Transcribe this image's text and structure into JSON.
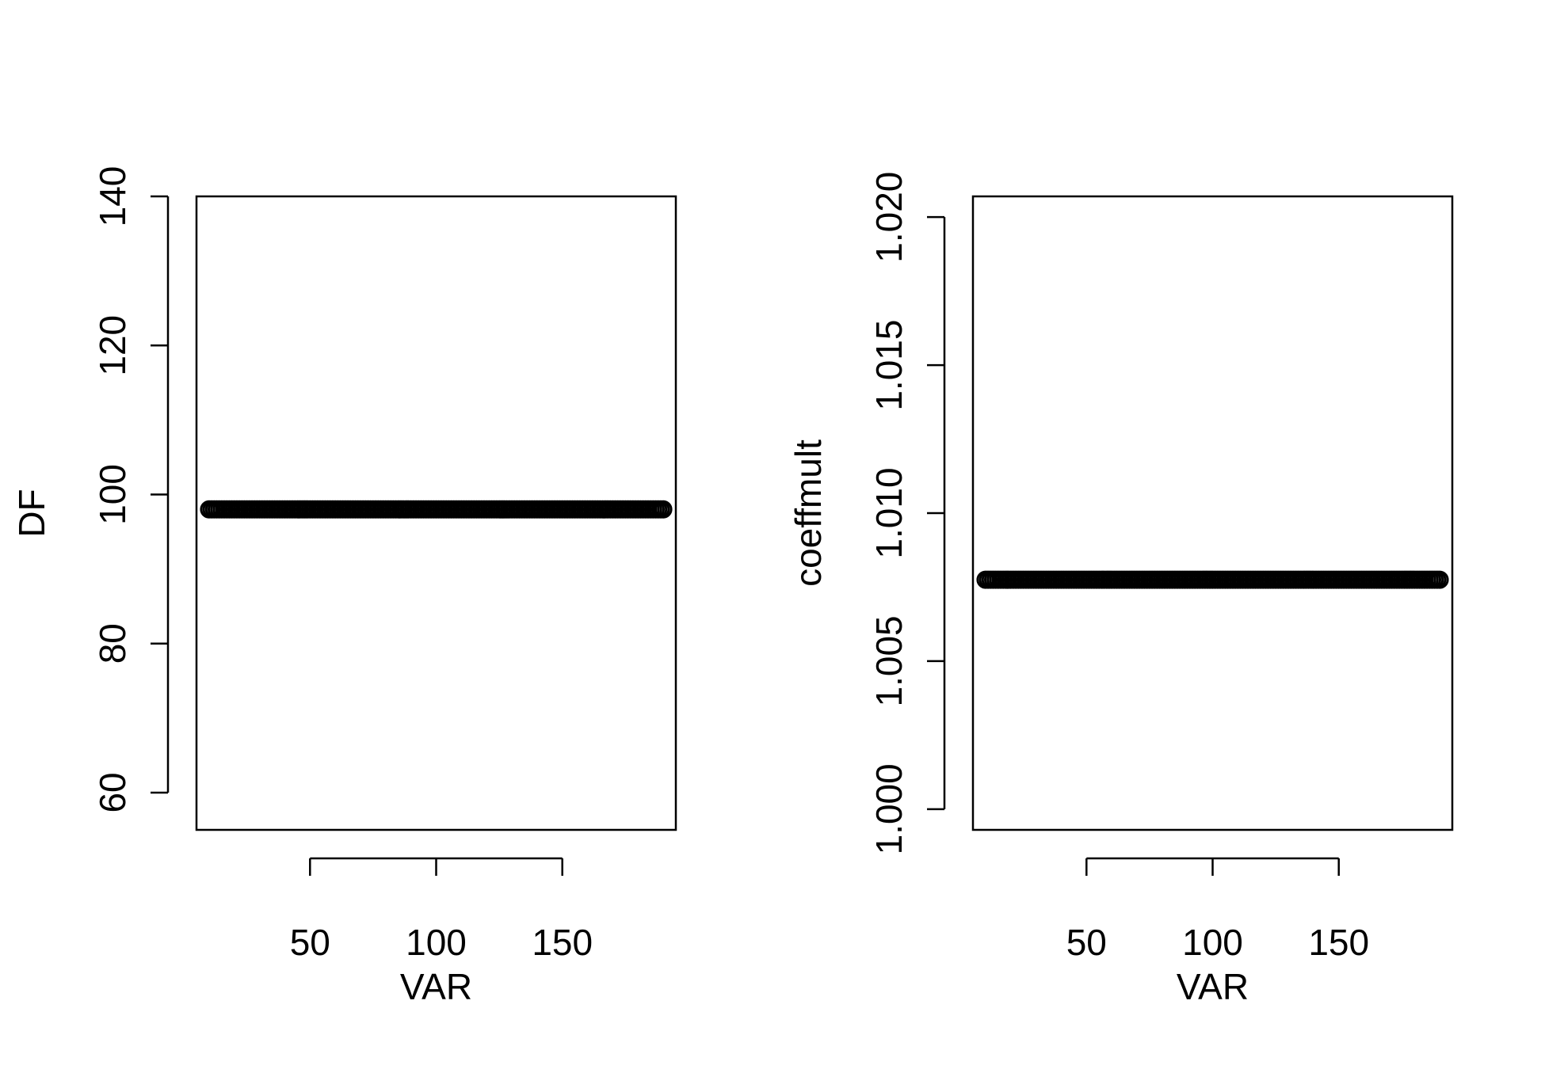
{
  "chart_data": [
    {
      "type": "scatter",
      "title": "",
      "xlabel": "VAR",
      "ylabel": "DF",
      "xlim": [
        5,
        195
      ],
      "ylim": [
        55,
        140
      ],
      "xticks": [
        50,
        100,
        150
      ],
      "xtick_labels": [
        "50",
        "100",
        "150"
      ],
      "yticks": [
        60,
        80,
        100,
        120,
        140
      ],
      "ytick_labels": [
        "60",
        "80",
        "100",
        "120",
        "140"
      ],
      "grid": false,
      "legend": "none",
      "marker": "open-circle",
      "color": "#000000",
      "series": [
        {
          "x_start": 10,
          "x_end": 190,
          "x_step": 1,
          "y_constant": 98
        }
      ]
    },
    {
      "type": "scatter",
      "title": "",
      "xlabel": "VAR",
      "ylabel": "coeffmult",
      "xlim": [
        5,
        195
      ],
      "ylim": [
        0.9993,
        1.0207
      ],
      "xticks": [
        50,
        100,
        150
      ],
      "xtick_labels": [
        "50",
        "100",
        "150"
      ],
      "yticks": [
        1.0,
        1.005,
        1.01,
        1.015,
        1.02
      ],
      "ytick_labels": [
        "1.000",
        "1.005",
        "1.010",
        "1.015",
        "1.020"
      ],
      "grid": false,
      "legend": "none",
      "marker": "open-circle",
      "color": "#000000",
      "series": [
        {
          "x_start": 10,
          "x_end": 190,
          "x_step": 1,
          "y_constant": 1.00775
        }
      ]
    }
  ]
}
